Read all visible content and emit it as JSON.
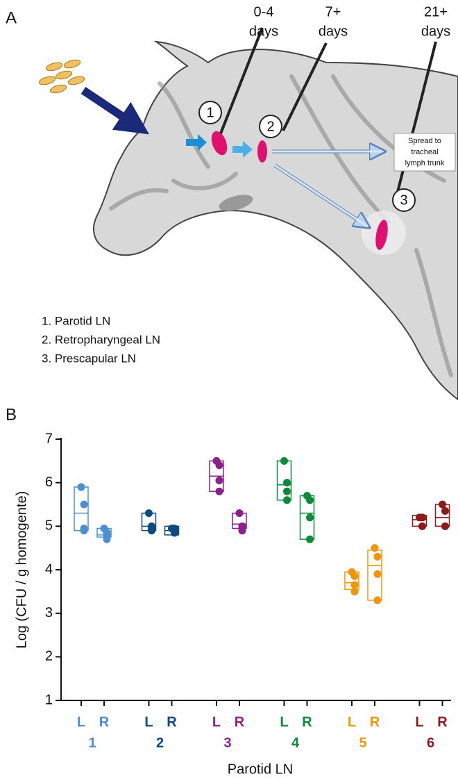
{
  "panel_a": {
    "label": "A",
    "needle_labels": [
      [
        "0-4",
        "days"
      ],
      [
        "7+",
        "days"
      ],
      [
        "21+",
        "days"
      ]
    ],
    "node_markers": [
      "1",
      "2",
      "3"
    ],
    "spread_note": [
      "Spread to",
      "tracheal",
      "lymph trunk"
    ],
    "legend": [
      "1. Parotid LN",
      "2. Retropharyngeal LN",
      "3. Prescapular LN"
    ]
  },
  "chart_data": {
    "type": "box",
    "panel_label": "B",
    "x_label": "Parotid LN",
    "y_label": "Log (CFU / g homogente)",
    "ylim": [
      1,
      7
    ],
    "yticks": [
      1,
      2,
      3,
      4,
      5,
      6,
      7
    ],
    "groups": [
      {
        "name": "1",
        "color": "#4a90d0",
        "sides": [
          {
            "name": "L",
            "values": [
              5.9,
              5.5,
              4.95,
              4.9
            ],
            "box": [
              4.9,
              5.3,
              5.9
            ]
          },
          {
            "name": "R",
            "values": [
              4.95,
              4.85,
              4.8,
              4.7
            ],
            "box": [
              4.75,
              4.8,
              4.95
            ]
          }
        ]
      },
      {
        "name": "2",
        "color": "#0d4a80",
        "sides": [
          {
            "name": "L",
            "values": [
              5.3,
              5.0,
              4.95,
              4.9
            ],
            "box": [
              4.9,
              5.0,
              5.3
            ]
          },
          {
            "name": "R",
            "values": [
              4.95,
              4.95,
              4.85,
              4.85
            ],
            "box": [
              4.8,
              4.9,
              5.0
            ]
          }
        ]
      },
      {
        "name": "3",
        "color": "#8b1f8b",
        "sides": [
          {
            "name": "L",
            "values": [
              6.5,
              6.4,
              6.05,
              5.8
            ],
            "box": [
              5.8,
              6.15,
              6.5
            ]
          },
          {
            "name": "R",
            "values": [
              5.3,
              5.0,
              5.0,
              4.9
            ],
            "box": [
              4.95,
              5.05,
              5.3
            ]
          }
        ]
      },
      {
        "name": "4",
        "color": "#0a8a3a",
        "sides": [
          {
            "name": "L",
            "values": [
              6.5,
              6.0,
              5.8,
              5.6
            ],
            "box": [
              5.6,
              5.95,
              6.5
            ]
          },
          {
            "name": "R",
            "values": [
              5.7,
              5.6,
              5.2,
              4.7
            ],
            "box": [
              4.7,
              5.3,
              5.7
            ]
          }
        ]
      },
      {
        "name": "5",
        "color": "#f0960a",
        "sides": [
          {
            "name": "L",
            "values": [
              3.95,
              3.85,
              3.65,
              3.5
            ],
            "box": [
              3.55,
              3.7,
              3.95
            ]
          },
          {
            "name": "R",
            "values": [
              4.5,
              4.3,
              3.9,
              3.3
            ],
            "box": [
              3.3,
              4.1,
              4.45
            ]
          }
        ]
      },
      {
        "name": "6",
        "color": "#8b1a1a",
        "sides": [
          {
            "name": "L",
            "values": [
              5.2,
              5.2,
              5.0,
              5.0
            ],
            "box": [
              5.0,
              5.15,
              5.25
            ]
          },
          {
            "name": "R",
            "values": [
              5.5,
              5.35,
              5.0,
              5.0
            ],
            "box": [
              5.0,
              5.2,
              5.5
            ]
          }
        ]
      }
    ]
  }
}
